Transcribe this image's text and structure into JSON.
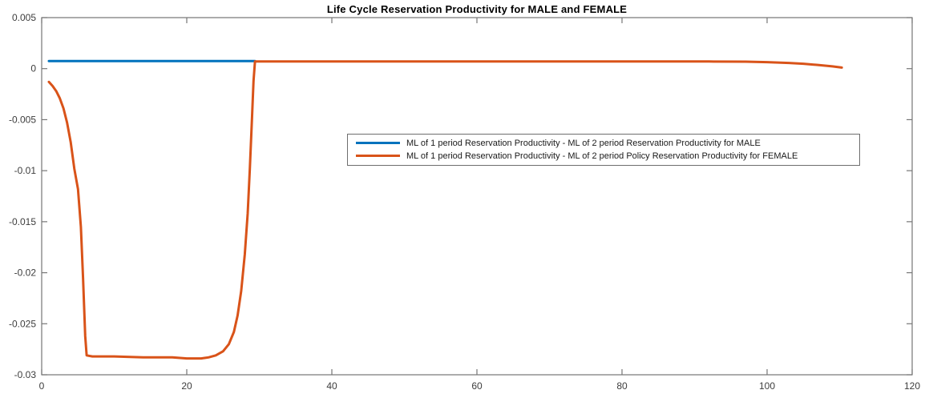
{
  "chart_data": {
    "type": "line",
    "title": "Life Cycle Reservation Productivity for MALE and FEMALE",
    "xlabel": "",
    "ylabel": "",
    "xlim": [
      0,
      120
    ],
    "ylim": [
      -0.03,
      0.005
    ],
    "grid": false,
    "box": true,
    "x_ticks": [
      0,
      20,
      40,
      60,
      80,
      100,
      120
    ],
    "x_tick_labels": [
      "0",
      "20",
      "40",
      "60",
      "80",
      "100",
      "120"
    ],
    "y_ticks": [
      0.005,
      0,
      -0.005,
      -0.01,
      -0.015,
      -0.02,
      -0.025,
      -0.03
    ],
    "y_tick_labels": [
      "0.005",
      "0",
      "-0.005",
      "-0.01",
      "-0.015",
      "-0.02",
      "-0.025",
      "-0.03"
    ],
    "axis_color": "#767676",
    "tick_label_color": "#3d3d3d",
    "legend": {
      "position": "center-right",
      "border": true,
      "entries": [
        {
          "label": "ML of 1 period Reservation Productivity - ML of 2 period Reservation Productivity for MALE",
          "color": "#0072BD"
        },
        {
          "label": "ML of 1 period Reservation Productivity - ML of 2 period Policy Reservation Productivity for FEMALE",
          "color": "#D95319"
        }
      ]
    },
    "series": [
      {
        "name": "MALE",
        "color": "#0072BD",
        "line_width": 3,
        "points": [
          [
            1,
            0.00075
          ],
          [
            29.4,
            0.00075
          ]
        ]
      },
      {
        "name": "FEMALE",
        "color": "#D95319",
        "line_width": 3,
        "points": [
          [
            1,
            -0.0013
          ],
          [
            1.5,
            -0.0017
          ],
          [
            2,
            -0.0022
          ],
          [
            2.5,
            -0.0029
          ],
          [
            3,
            -0.0039
          ],
          [
            3.5,
            -0.0053
          ],
          [
            4,
            -0.0072
          ],
          [
            4.5,
            -0.0098
          ],
          [
            5,
            -0.0118
          ],
          [
            5.4,
            -0.0155
          ],
          [
            5.7,
            -0.0205
          ],
          [
            6,
            -0.0262
          ],
          [
            6.2,
            -0.0281
          ],
          [
            7,
            -0.0282
          ],
          [
            10,
            -0.0282
          ],
          [
            14,
            -0.0283
          ],
          [
            18,
            -0.0283
          ],
          [
            20,
            -0.0284
          ],
          [
            22,
            -0.0284
          ],
          [
            23,
            -0.0283
          ],
          [
            24,
            -0.0281
          ],
          [
            25,
            -0.0277
          ],
          [
            25.8,
            -0.027
          ],
          [
            26.5,
            -0.0258
          ],
          [
            27,
            -0.0242
          ],
          [
            27.5,
            -0.0218
          ],
          [
            28,
            -0.0182
          ],
          [
            28.4,
            -0.0142
          ],
          [
            28.7,
            -0.0098
          ],
          [
            29,
            -0.0048
          ],
          [
            29.2,
            -0.0012
          ],
          [
            29.4,
            0.0007
          ],
          [
            35,
            0.0007
          ],
          [
            50,
            0.0007
          ],
          [
            65,
            0.0007
          ],
          [
            80,
            0.0007
          ],
          [
            92,
            0.0007
          ],
          [
            97,
            0.00068
          ],
          [
            100,
            0.00064
          ],
          [
            103,
            0.00056
          ],
          [
            105,
            0.00048
          ],
          [
            107,
            0.00036
          ],
          [
            109,
            0.00022
          ],
          [
            110.3,
            0.0001
          ]
        ]
      }
    ]
  }
}
